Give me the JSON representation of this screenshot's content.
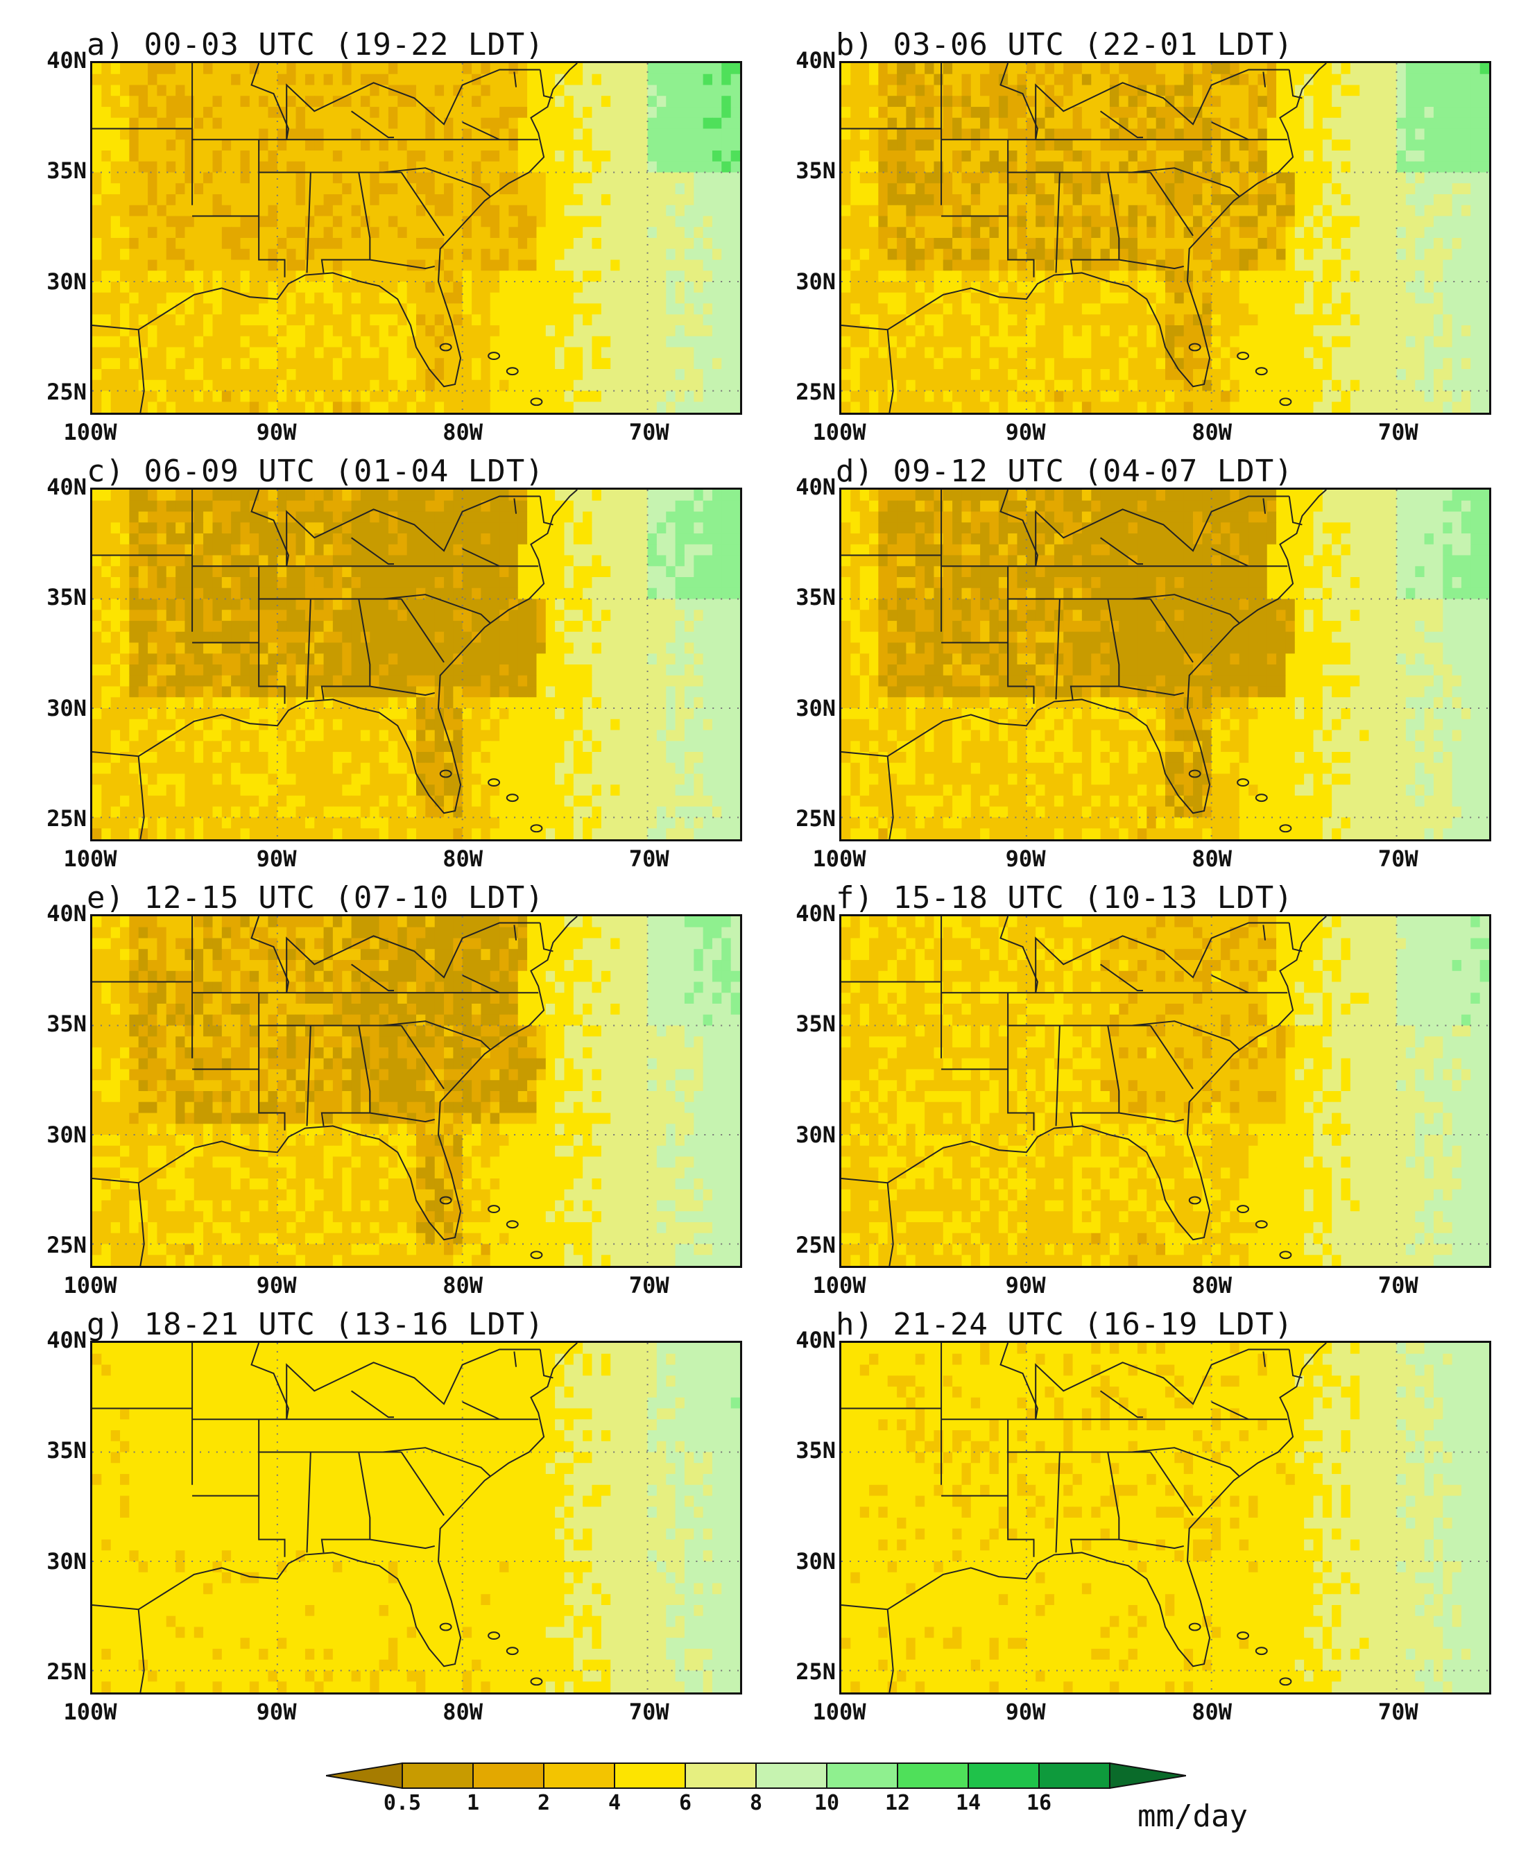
{
  "panels": [
    {
      "title": "a) 00-03 UTC (19-22 LDT)",
      "phase": 0
    },
    {
      "title": "b) 03-06 UTC (22-01 LDT)",
      "phase": 1
    },
    {
      "title": "c) 06-09 UTC (01-04 LDT)",
      "phase": 2
    },
    {
      "title": "d) 09-12 UTC (04-07 LDT)",
      "phase": 3
    },
    {
      "title": "e) 12-15 UTC (07-10 LDT)",
      "phase": 4
    },
    {
      "title": "f) 15-18 UTC (10-13 LDT)",
      "phase": 5
    },
    {
      "title": "g) 18-21 UTC (13-16 LDT)",
      "phase": 6
    },
    {
      "title": "h) 21-24 UTC (16-19 LDT)",
      "phase": 7
    }
  ],
  "axes": {
    "lat_ticks": [
      "40N",
      "35N",
      "30N",
      "25N"
    ],
    "lon_ticks": [
      "100W",
      "90W",
      "80W",
      "70W"
    ],
    "lat_range": [
      24,
      40
    ],
    "lon_range": [
      -100,
      -65
    ],
    "grid": "dotted"
  },
  "colorbar": {
    "labels": [
      "0.5",
      "1",
      "2",
      "4",
      "6",
      "8",
      "10",
      "12",
      "14",
      "16"
    ],
    "colors": [
      "#a67c00",
      "#c89b00",
      "#e3a800",
      "#f3c400",
      "#fde400",
      "#e6ef80",
      "#c6f3b0",
      "#8ff08f",
      "#4fe05a",
      "#1fc24a",
      "#0e9a3c",
      "#0a6b2a"
    ],
    "unit": "mm/day"
  }
}
